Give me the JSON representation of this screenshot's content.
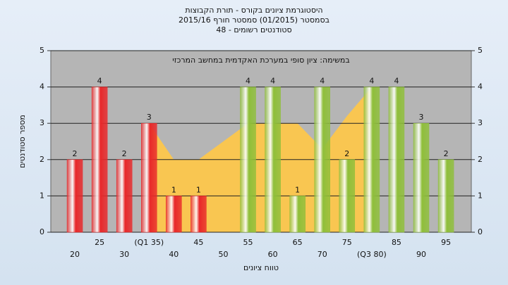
{
  "chart_data": {
    "type": "bar",
    "title": "היסטוגרמת ציונים בקורס - תורת הקבוצות",
    "subtitle": "בסמסטר  (01/2015)  סמסטר חורף 2015/16",
    "subtitle2": "סטודנטים רשומים - 48",
    "annotation": "במשימה: ציון סופי במערכת האקדמית במחשב המרכזי",
    "ylabel": "מספר סטודנטים",
    "xlabel": "טווח ציונים",
    "categories": [
      "20",
      "25",
      "30",
      "(Q1 35)",
      "40",
      "45",
      "50",
      "55",
      "60",
      "65",
      "70",
      "75",
      "(Q3 80)",
      "85",
      "90",
      "95"
    ],
    "values": [
      2,
      4,
      2,
      3,
      1,
      1,
      0,
      4,
      4,
      1,
      4,
      2,
      4,
      4,
      3,
      2
    ],
    "colors": [
      "#e8282a",
      "#e8282a",
      "#e8282a",
      "#e8282a",
      "#e8282a",
      "#e8282a",
      "#8fbf3a",
      "#8fbf3a",
      "#8fbf3a",
      "#8fbf3a",
      "#8fbf3a",
      "#8fbf3a",
      "#8fbf3a",
      "#8fbf3a",
      "#8fbf3a",
      "#8fbf3a"
    ],
    "area": {
      "color": "#f9c651",
      "values": [
        null,
        null,
        null,
        3,
        2,
        2,
        2.5,
        3,
        3,
        3,
        2.3,
        3.2,
        4,
        null,
        null,
        null
      ]
    },
    "ylim": [
      0,
      5
    ],
    "yticks": [
      0,
      1,
      2,
      3,
      4,
      5
    ],
    "y2lim": [
      0,
      5
    ],
    "y2ticks": [
      0,
      1,
      2,
      3,
      4,
      5
    ],
    "grid": true
  }
}
